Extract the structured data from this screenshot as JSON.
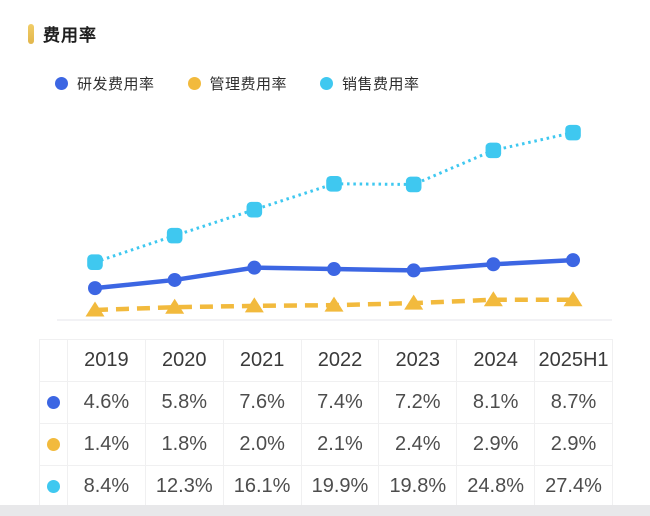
{
  "page": {
    "title": "费用率",
    "accent_color": "#EBC155",
    "background_color": "#FFFFFF",
    "footer_strip_color": "#E8E8EA"
  },
  "legend": [
    {
      "label": "研发费用率",
      "color": "#3C66E3"
    },
    {
      "label": "管理费用率",
      "color": "#F2BA3D"
    },
    {
      "label": "销售费用率",
      "color": "#3FC8F0"
    }
  ],
  "chart_data": {
    "type": "line",
    "title": "费用率",
    "categories": [
      "2019",
      "2020",
      "2021",
      "2022",
      "2023",
      "2024",
      "2025H1"
    ],
    "series": [
      {
        "name": "研发费用率",
        "color": "#3C66E3",
        "marker": "circle",
        "line_style": "solid",
        "values": [
          4.6,
          5.8,
          7.6,
          7.4,
          7.2,
          8.1,
          8.7
        ]
      },
      {
        "name": "管理费用率",
        "color": "#F2BA3D",
        "marker": "triangle",
        "line_style": "dashed",
        "values": [
          1.4,
          1.8,
          2.0,
          2.1,
          2.4,
          2.9,
          2.9
        ]
      },
      {
        "name": "销售费用率",
        "color": "#3FC8F0",
        "marker": "square",
        "line_style": "dotted",
        "values": [
          8.4,
          12.3,
          16.1,
          19.9,
          19.8,
          24.8,
          27.4
        ]
      }
    ],
    "xlabel": "",
    "ylabel": "",
    "ylim": [
      0,
      30
    ],
    "grid": false,
    "axes_hidden": true,
    "legend_position": "top",
    "unit": "%"
  },
  "table": {
    "corner_label": "",
    "header": [
      "2019",
      "2020",
      "2021",
      "2022",
      "2023",
      "2024",
      "2025H1"
    ],
    "rows": [
      {
        "series": "研发费用率",
        "color": "#3C66E3",
        "values": [
          "4.6%",
          "5.8%",
          "7.6%",
          "7.4%",
          "7.2%",
          "8.1%",
          "8.7%"
        ]
      },
      {
        "series": "管理费用率",
        "color": "#F2BA3D",
        "values": [
          "1.4%",
          "1.8%",
          "2.0%",
          "2.1%",
          "2.4%",
          "2.9%",
          "2.9%"
        ]
      },
      {
        "series": "销售费用率",
        "color": "#3FC8F0",
        "values": [
          "8.4%",
          "12.3%",
          "16.1%",
          "19.9%",
          "19.8%",
          "24.8%",
          "27.4%"
        ]
      }
    ]
  }
}
